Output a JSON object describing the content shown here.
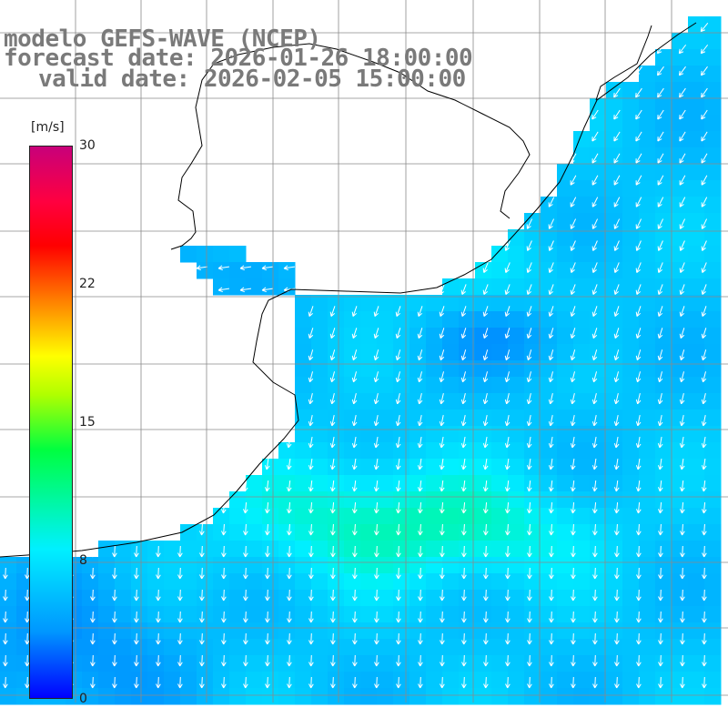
{
  "title": {
    "line1": "modelo GEFS-WAVE (NCEP)",
    "line2": "forecast date: 2026-01-26 18:00:00",
    "line3": "valid date: 2026-02-05 15:00:00"
  },
  "colorbar": {
    "unit": "[m/s]",
    "ticks": [
      "30",
      "22",
      "15",
      "8",
      "0"
    ],
    "range": [
      0,
      30
    ],
    "colors": [
      "#0000ff",
      "#0096ff",
      "#00f0ff",
      "#00ff40",
      "#ffff00",
      "#ff8000",
      "#ff0000",
      "#c8007a"
    ]
  },
  "map": {
    "land_color": "#ffffff",
    "grid_color": "#8a8a8a",
    "coast_color": "#000000",
    "arrow_color": "#ffffff"
  }
}
